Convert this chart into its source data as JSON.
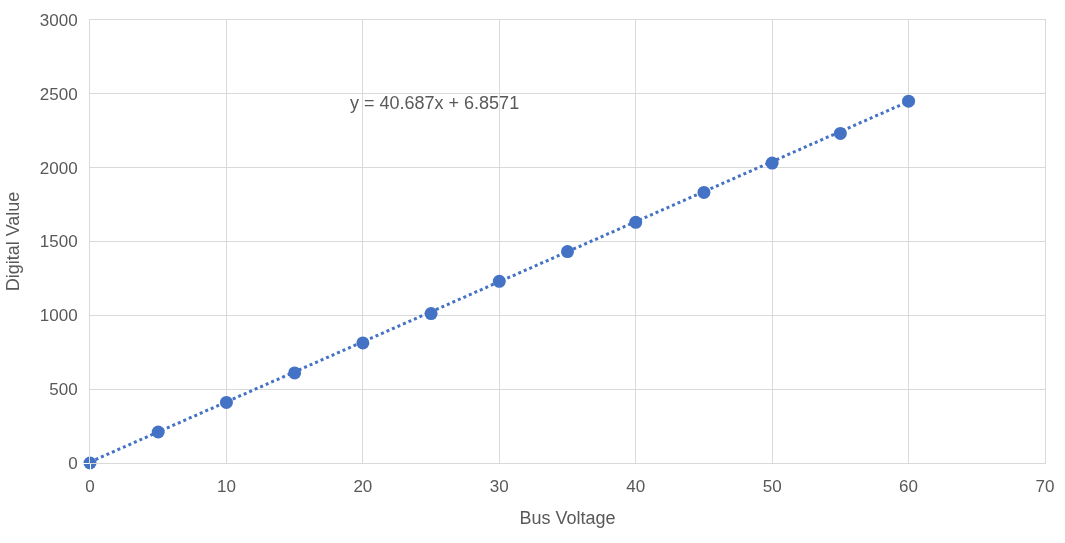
{
  "chart_data": {
    "type": "scatter",
    "xlabel": "Bus Voltage",
    "ylabel": "Digital Value",
    "annotations": [
      "y = 40.687x + 6.8571"
    ],
    "series": [
      {
        "color": "#4472c4",
        "marker": "circle",
        "x": [
          0,
          5,
          10,
          15,
          20,
          25,
          30,
          35,
          40,
          45,
          50,
          55,
          60
        ],
        "values": [
          0,
          210,
          410,
          610,
          813,
          1012,
          1230,
          1432,
          1630,
          1832,
          2031,
          2232,
          2450
        ]
      },
      {
        "type": "line",
        "color": "#4472c4",
        "line_style": "dotted",
        "marker": "none",
        "x": [
          0,
          60
        ],
        "values": [
          7,
          2448
        ]
      }
    ],
    "xlim": [
      0,
      70
    ],
    "xticks": [
      0,
      10,
      20,
      30,
      40,
      50,
      60,
      70
    ],
    "ylim": [
      0,
      3000
    ],
    "yticks": [
      0,
      500,
      1000,
      1500,
      2000,
      2500,
      3000
    ],
    "grid": true
  }
}
